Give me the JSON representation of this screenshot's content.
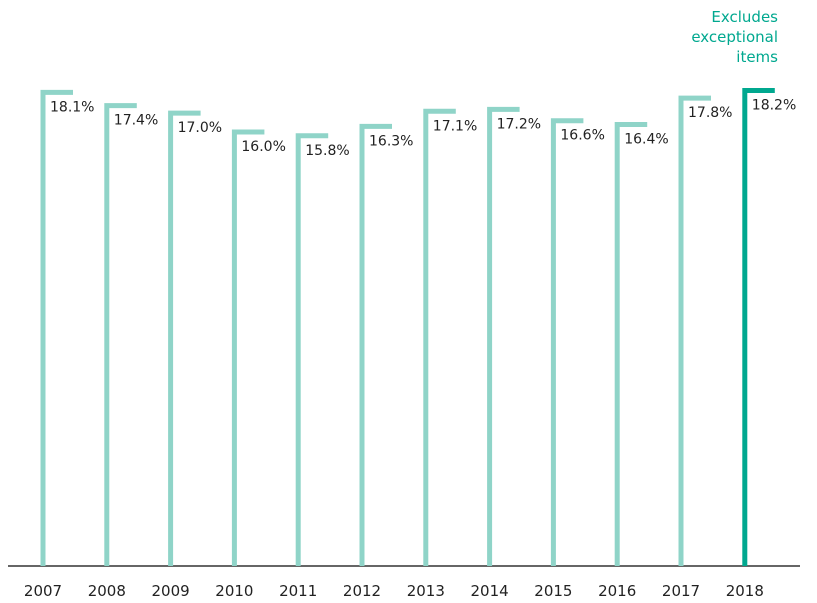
{
  "chart_data": {
    "type": "bar",
    "categories": [
      "2007",
      "2008",
      "2009",
      "2010",
      "2011",
      "2012",
      "2013",
      "2014",
      "2015",
      "2016",
      "2017",
      "2018"
    ],
    "values": [
      18.1,
      17.4,
      17.0,
      16.0,
      15.8,
      16.3,
      17.1,
      17.2,
      16.6,
      16.4,
      17.8,
      18.2
    ],
    "value_labels": [
      "18.1%",
      "17.4%",
      "17.0%",
      "16.0%",
      "15.8%",
      "16.3%",
      "17.1%",
      "17.2%",
      "16.6%",
      "16.4%",
      "17.8%",
      "18.2%"
    ],
    "colors": [
      "#8fd4c8",
      "#8fd4c8",
      "#8fd4c8",
      "#8fd4c8",
      "#8fd4c8",
      "#8fd4c8",
      "#8fd4c8",
      "#8fd4c8",
      "#8fd4c8",
      "#8fd4c8",
      "#8fd4c8",
      "#00a88f"
    ],
    "annotation": [
      "Excludes",
      "exceptional",
      "items"
    ],
    "annotation_color": "#00a88f",
    "ylim": [
      -7,
      19.5
    ]
  }
}
